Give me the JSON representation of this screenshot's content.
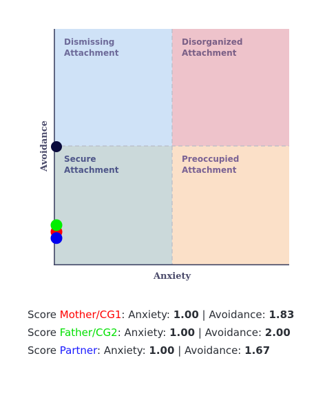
{
  "chart_data": {
    "type": "scatter",
    "xlabel": "Anxiety",
    "ylabel": "Avoidance",
    "xlim": [
      1,
      7
    ],
    "ylim": [
      1,
      7
    ],
    "grid": false,
    "quadrants": [
      {
        "label": [
          "Dismissing",
          "Attachment"
        ],
        "color": "#cfe2f7",
        "text_color": "#6d6a99"
      },
      {
        "label": [
          "Disorganized",
          "Attachment"
        ],
        "color": "#eec3cb",
        "text_color": "#7a5f86"
      },
      {
        "label": [
          "Secure",
          "Attachment"
        ],
        "color": "#cbd9da",
        "text_color": "#4e5689"
      },
      {
        "label": [
          "Preoccupied",
          "Attachment"
        ],
        "color": "#fbe0c8",
        "text_color": "#7a6294"
      }
    ],
    "series": [
      {
        "name": "Mother/CG1",
        "color": "#ff0000",
        "x": 1.0,
        "y": 1.83
      },
      {
        "name": "Father/CG2",
        "color": "#00ee00",
        "x": 1.0,
        "y": 2.0
      },
      {
        "name": "Partner",
        "color": "#0000ee",
        "x": 1.0,
        "y": 1.67
      }
    ],
    "points": [
      {
        "color": "#0a0a3c",
        "x": 1.0,
        "y": 4.0
      }
    ]
  },
  "scores": [
    {
      "prefix": "Score ",
      "name": "Mother/CG1",
      "color": "#ff0000",
      "anx_label": ": Anxiety: ",
      "anx": "1.00",
      "sep": " | Avoidance: ",
      "avo": "1.83"
    },
    {
      "prefix": "Score ",
      "name": "Father/CG2",
      "color": "#00e000",
      "anx_label": ": Anxiety: ",
      "anx": "1.00",
      "sep": " | Avoidance: ",
      "avo": "2.00"
    },
    {
      "prefix": "Score ",
      "name": "Partner",
      "color": "#1a1aff",
      "anx_label": ": Anxiety: ",
      "anx": "1.00",
      "sep": " | Avoidance: ",
      "avo": "1.67"
    }
  ]
}
